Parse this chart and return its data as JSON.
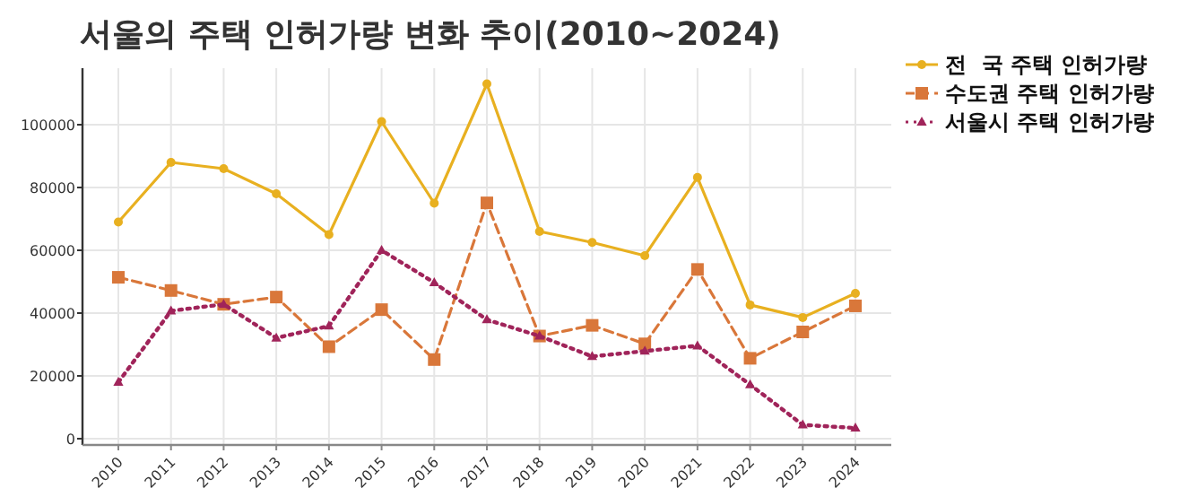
{
  "chart_data": {
    "type": "line",
    "title": "서울의 주택 인허가량 변화 추이(2010~2024)",
    "categories": [
      "2010",
      "2011",
      "2012",
      "2013",
      "2014",
      "2015",
      "2016",
      "2017",
      "2018",
      "2019",
      "2020",
      "2021",
      "2022",
      "2023",
      "2024"
    ],
    "series": [
      {
        "name": "전  국 주택 인허가량",
        "color": "#e8b020",
        "marker": "circle",
        "line_style": "solid",
        "values": [
          69000,
          88000,
          86000,
          78000,
          65000,
          101000,
          75000,
          113000,
          66000,
          62500,
          58300,
          83200,
          42600,
          38600,
          46300
        ]
      },
      {
        "name": "수도권 주택 인허가량",
        "color": "#d9773a",
        "marker": "square",
        "line_style": "dashed",
        "values": [
          51400,
          47200,
          42800,
          45100,
          29300,
          41100,
          25200,
          75100,
          32700,
          36100,
          30200,
          53900,
          25600,
          34000,
          42300
        ]
      },
      {
        "name": "서울시 주택 인허가량",
        "color": "#a0245a",
        "marker": "triangle",
        "line_style": "dotted",
        "values": [
          18000,
          40700,
          42800,
          32100,
          35900,
          60000,
          49700,
          37900,
          32700,
          26200,
          27900,
          29600,
          17200,
          4400,
          3400
        ]
      }
    ],
    "ylim": [
      -2000,
      118000
    ],
    "yticks": [
      0,
      20000,
      40000,
      60000,
      80000,
      100000
    ],
    "grid": true,
    "legend": "right"
  }
}
